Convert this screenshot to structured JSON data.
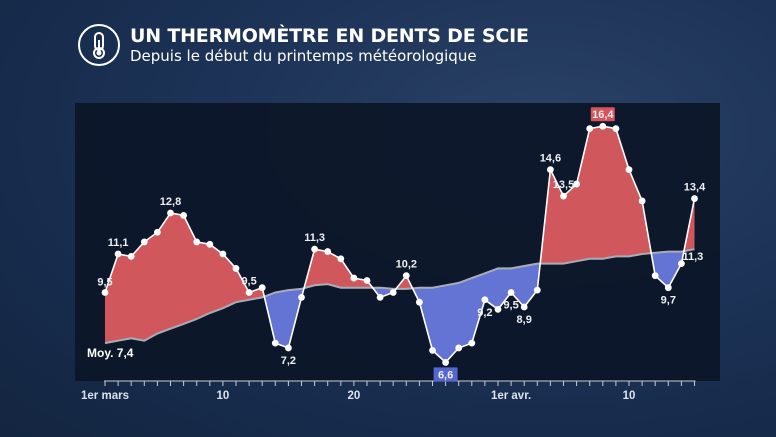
{
  "header": {
    "icon": "thermometer-icon",
    "title": "UN THERMOMÈTRE EN DENTS DE SCIE",
    "subtitle": "Depuis le début du printemps météorologique"
  },
  "chart_data": {
    "type": "area",
    "title": "UN THERMOMÈTRE EN DENTS DE SCIE",
    "subtitle": "Depuis le début du printemps météorologique",
    "x_start": "1er mars",
    "x": [
      "1 mars",
      "2 mars",
      "3 mars",
      "4 mars",
      "5 mars",
      "6 mars",
      "7 mars",
      "8 mars",
      "9 mars",
      "10 mars",
      "11 mars",
      "12 mars",
      "13 mars",
      "14 mars",
      "15 mars",
      "16 mars",
      "17 mars",
      "18 mars",
      "19 mars",
      "20 mars",
      "21 mars",
      "22 mars",
      "23 mars",
      "24 mars",
      "25 mars",
      "26 mars",
      "27 mars",
      "28 mars",
      "29 mars",
      "30 mars",
      "31 mars",
      "1 avr.",
      "2 avr.",
      "3 avr.",
      "4 avr.",
      "5 avr.",
      "6 avr.",
      "7 avr.",
      "8 avr.",
      "9 avr.",
      "10 avr.",
      "11 avr.",
      "12 avr.",
      "13 avr.",
      "14 avr.",
      "15 avr."
    ],
    "series": [
      {
        "role": "observed",
        "values": [
          9.5,
          11.1,
          11.0,
          11.6,
          12.0,
          12.8,
          12.7,
          11.6,
          11.5,
          11.1,
          10.5,
          9.5,
          9.7,
          7.4,
          7.2,
          9.3,
          11.3,
          11.2,
          10.9,
          10.1,
          10.0,
          9.3,
          9.5,
          10.2,
          9.1,
          7.1,
          6.6,
          7.2,
          7.4,
          9.2,
          8.8,
          9.5,
          8.9,
          9.6,
          14.6,
          13.5,
          14.0,
          16.3,
          16.4,
          16.3,
          14.6,
          13.3,
          10.2,
          9.7,
          10.7,
          13.4
        ]
      },
      {
        "role": "normal",
        "name": "Moy.",
        "values": [
          7.4,
          7.5,
          7.6,
          7.5,
          7.8,
          8.0,
          8.2,
          8.4,
          8.65,
          8.85,
          9.1,
          9.2,
          9.3,
          9.5,
          9.6,
          9.65,
          9.8,
          9.85,
          9.7,
          9.7,
          9.7,
          9.7,
          9.65,
          9.65,
          9.7,
          9.7,
          9.8,
          9.9,
          10.1,
          10.3,
          10.5,
          10.5,
          10.6,
          10.7,
          10.7,
          10.7,
          10.8,
          10.9,
          10.9,
          11.0,
          11.0,
          11.1,
          11.15,
          11.2,
          11.2,
          11.3
        ]
      }
    ],
    "ylim": [
      5.5,
      17
    ],
    "x_tick_labels": [
      {
        "index": 0,
        "text": "1er mars"
      },
      {
        "index": 9,
        "text": "10"
      },
      {
        "index": 19,
        "text": "20"
      },
      {
        "index": 31,
        "text": "1er avr."
      },
      {
        "index": 40,
        "text": "10"
      }
    ],
    "annotations": [
      {
        "index": 0,
        "text": "9,5",
        "place": "above-left"
      },
      {
        "index": 1,
        "text": "11,1",
        "place": "above"
      },
      {
        "index": 5,
        "text": "12,8",
        "place": "above"
      },
      {
        "index": 11,
        "text": "9,5",
        "place": "above"
      },
      {
        "index": 14,
        "text": "7,2",
        "place": "below"
      },
      {
        "index": 16,
        "text": "11,3",
        "place": "above"
      },
      {
        "index": 23,
        "text": "10,2",
        "place": "above"
      },
      {
        "index": 26,
        "text": "6,6",
        "place": "box-below"
      },
      {
        "index": 29,
        "text": "9,2",
        "place": "below"
      },
      {
        "index": 31,
        "text": "9,5",
        "place": "below"
      },
      {
        "index": 32,
        "text": "8,9",
        "place": "below"
      },
      {
        "index": 34,
        "text": "14,6",
        "place": "above"
      },
      {
        "index": 35,
        "text": "13,5",
        "place": "above"
      },
      {
        "index": 38,
        "text": "16,4",
        "place": "box-above"
      },
      {
        "index": 43,
        "text": "9,7",
        "place": "below"
      },
      {
        "index": 45,
        "text": "13,4",
        "place": "above"
      }
    ],
    "normal_labels": [
      {
        "index": 0,
        "text": "Moy. 7,4",
        "place": "below-left"
      },
      {
        "index": 45,
        "text": "11,3",
        "place": "below-left"
      }
    ],
    "colors": {
      "above": "#d0585c",
      "below": "#6474d4",
      "normal_line": "#a9adb8",
      "line": "#ffffff",
      "max_box": "#d9535a",
      "min_box": "#5566d0"
    },
    "grid": false,
    "legend": "none"
  }
}
